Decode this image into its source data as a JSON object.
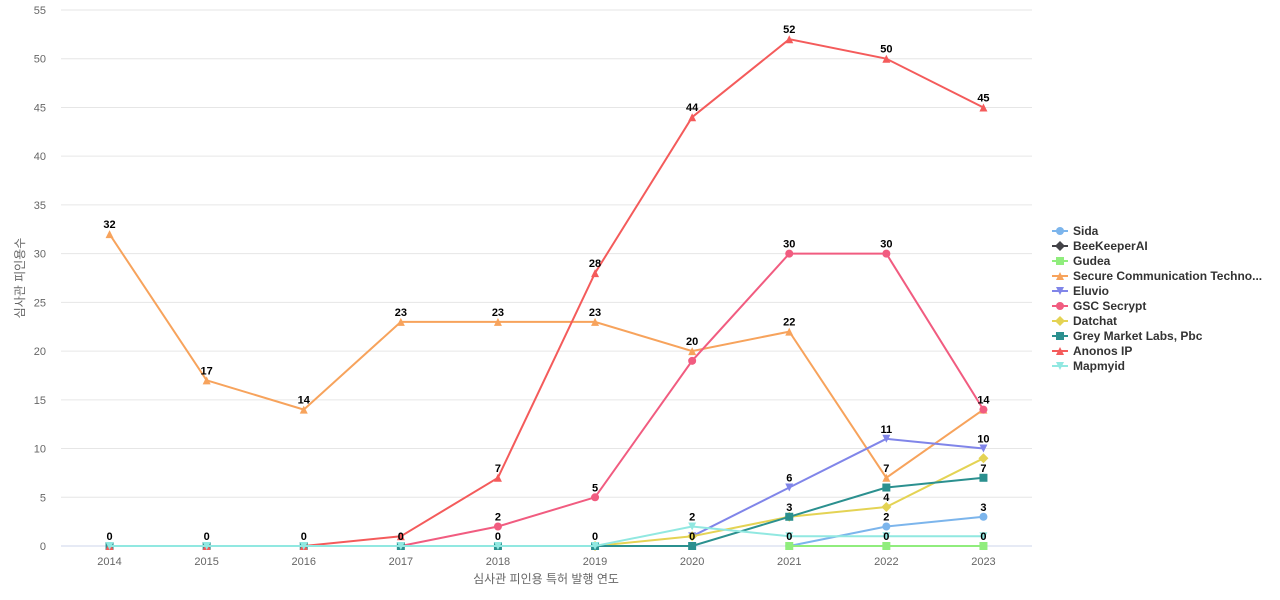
{
  "chart_data": {
    "type": "line",
    "xlabel": "심사관 피인용 특허 발행 연도",
    "ylabel": "심사관 피인용수",
    "ylim": [
      0,
      55
    ],
    "yticks": [
      0,
      5,
      10,
      15,
      20,
      25,
      30,
      35,
      40,
      45,
      50,
      55
    ],
    "grid": true,
    "legend_position": "right",
    "categories": [
      "2014",
      "2015",
      "2016",
      "2017",
      "2018",
      "2019",
      "2020",
      "2021",
      "2022",
      "2023"
    ],
    "series": [
      {
        "name": "Sida",
        "color": "#7cb5ec",
        "marker": "circle",
        "values": [
          null,
          null,
          null,
          null,
          null,
          null,
          null,
          0,
          2,
          3
        ]
      },
      {
        "name": "BeeKeeperAI",
        "color": "#434348",
        "marker": "diamond",
        "values": [
          null,
          null,
          null,
          null,
          null,
          null,
          null,
          null,
          null,
          null
        ]
      },
      {
        "name": "Gudea",
        "color": "#90ed7d",
        "marker": "square",
        "values": [
          null,
          null,
          null,
          null,
          null,
          null,
          null,
          0,
          0,
          0
        ]
      },
      {
        "name": "Secure Communication Techno...",
        "color": "#f7a35c",
        "marker": "triangle",
        "values": [
          32,
          17,
          14,
          23,
          23,
          23,
          20,
          22,
          7,
          14
        ]
      },
      {
        "name": "Eluvio",
        "color": "#8085e9",
        "marker": "triangle-down",
        "values": [
          null,
          null,
          null,
          null,
          null,
          null,
          1,
          6,
          11,
          10
        ]
      },
      {
        "name": "GSC Secrypt",
        "color": "#f15c80",
        "marker": "circle",
        "values": [
          null,
          null,
          0,
          0,
          2,
          5,
          19,
          30,
          30,
          14
        ]
      },
      {
        "name": "Datchat",
        "color": "#e4d354",
        "marker": "diamond",
        "values": [
          null,
          null,
          null,
          null,
          null,
          0,
          1,
          3,
          4,
          9
        ]
      },
      {
        "name": "Grey Market Labs, Pbc",
        "color": "#2b908f",
        "marker": "square",
        "values": [
          0,
          0,
          0,
          0,
          0,
          0,
          0,
          3,
          6,
          7
        ]
      },
      {
        "name": "Anonos IP",
        "color": "#f45b5b",
        "marker": "triangle",
        "values": [
          0,
          0,
          0,
          1,
          7,
          28,
          44,
          52,
          50,
          45
        ]
      },
      {
        "name": "Mapmyid",
        "color": "#91e8e1",
        "marker": "triangle-down",
        "values": [
          0,
          0,
          0,
          0,
          0,
          0,
          2,
          1,
          1,
          1
        ]
      }
    ],
    "data_labels": [
      {
        "category": "2014",
        "values": [
          "32",
          "0"
        ]
      },
      {
        "category": "2015",
        "values": [
          "17",
          "0"
        ]
      },
      {
        "category": "2016",
        "values": [
          "14",
          "0"
        ]
      },
      {
        "category": "2017",
        "values": [
          "23",
          "0"
        ]
      },
      {
        "category": "2018",
        "values": [
          "23",
          "7",
          "2",
          "0"
        ]
      },
      {
        "category": "2019",
        "values": [
          "28",
          "23",
          "5",
          "0"
        ]
      },
      {
        "category": "2020",
        "values": [
          "44",
          "20",
          "2",
          "0"
        ]
      },
      {
        "category": "2021",
        "values": [
          "52",
          "30",
          "22",
          "6",
          "3",
          "0"
        ]
      },
      {
        "category": "2022",
        "values": [
          "50",
          "30",
          "11",
          "7",
          "4",
          "2",
          "0"
        ]
      },
      {
        "category": "2023",
        "values": [
          "45",
          "14",
          "10",
          "7",
          "3",
          "0"
        ]
      }
    ]
  }
}
